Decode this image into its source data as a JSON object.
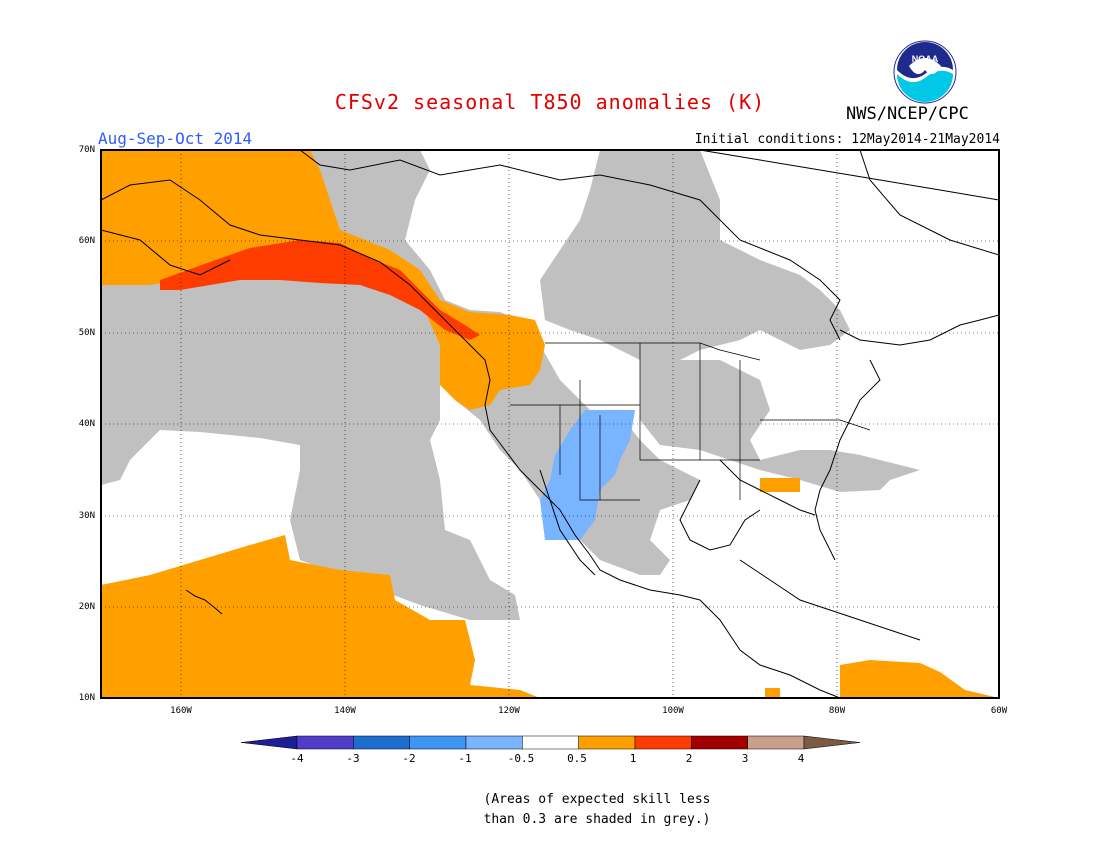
{
  "header": {
    "title": "CFSv2 seasonal T850 anomalies (K)",
    "agency": "NWS/NCEP/CPC",
    "season": "Aug-Sep-Oct 2014",
    "initial_conditions": "Initial conditions: 12May2014-21May2014",
    "logo_text": "NOAA"
  },
  "map": {
    "lat_labels": [
      "70N",
      "60N",
      "50N",
      "40N",
      "30N",
      "20N",
      "10N"
    ],
    "lon_labels": [
      "160W",
      "140W",
      "120W",
      "100W",
      "80W",
      "60W"
    ],
    "colors": {
      "low_skill_grey": "#c0c0c0",
      "anomaly_0_5_to_1": "#ffa000",
      "anomaly_1_to_2": "#ff3c00",
      "anomaly_neg1_to_neg0_5": "#78b4ff",
      "land_outline": "#000000"
    }
  },
  "colorbar": {
    "labels": [
      "-4",
      "-3",
      "-2",
      "-1",
      "-0.5",
      "0.5",
      "1",
      "2",
      "3",
      "4"
    ],
    "colors": [
      "#1e1e96",
      "#503cc8",
      "#1e6ed2",
      "#3c96f5",
      "#78b4ff",
      "#ffffff",
      "#ffa000",
      "#ff3c00",
      "#a50000",
      "#c8a08c",
      "#7d5a46"
    ]
  },
  "note": {
    "line1": "(Areas of expected skill less",
    "line2": "than 0.3 are shaded in grey.)"
  }
}
